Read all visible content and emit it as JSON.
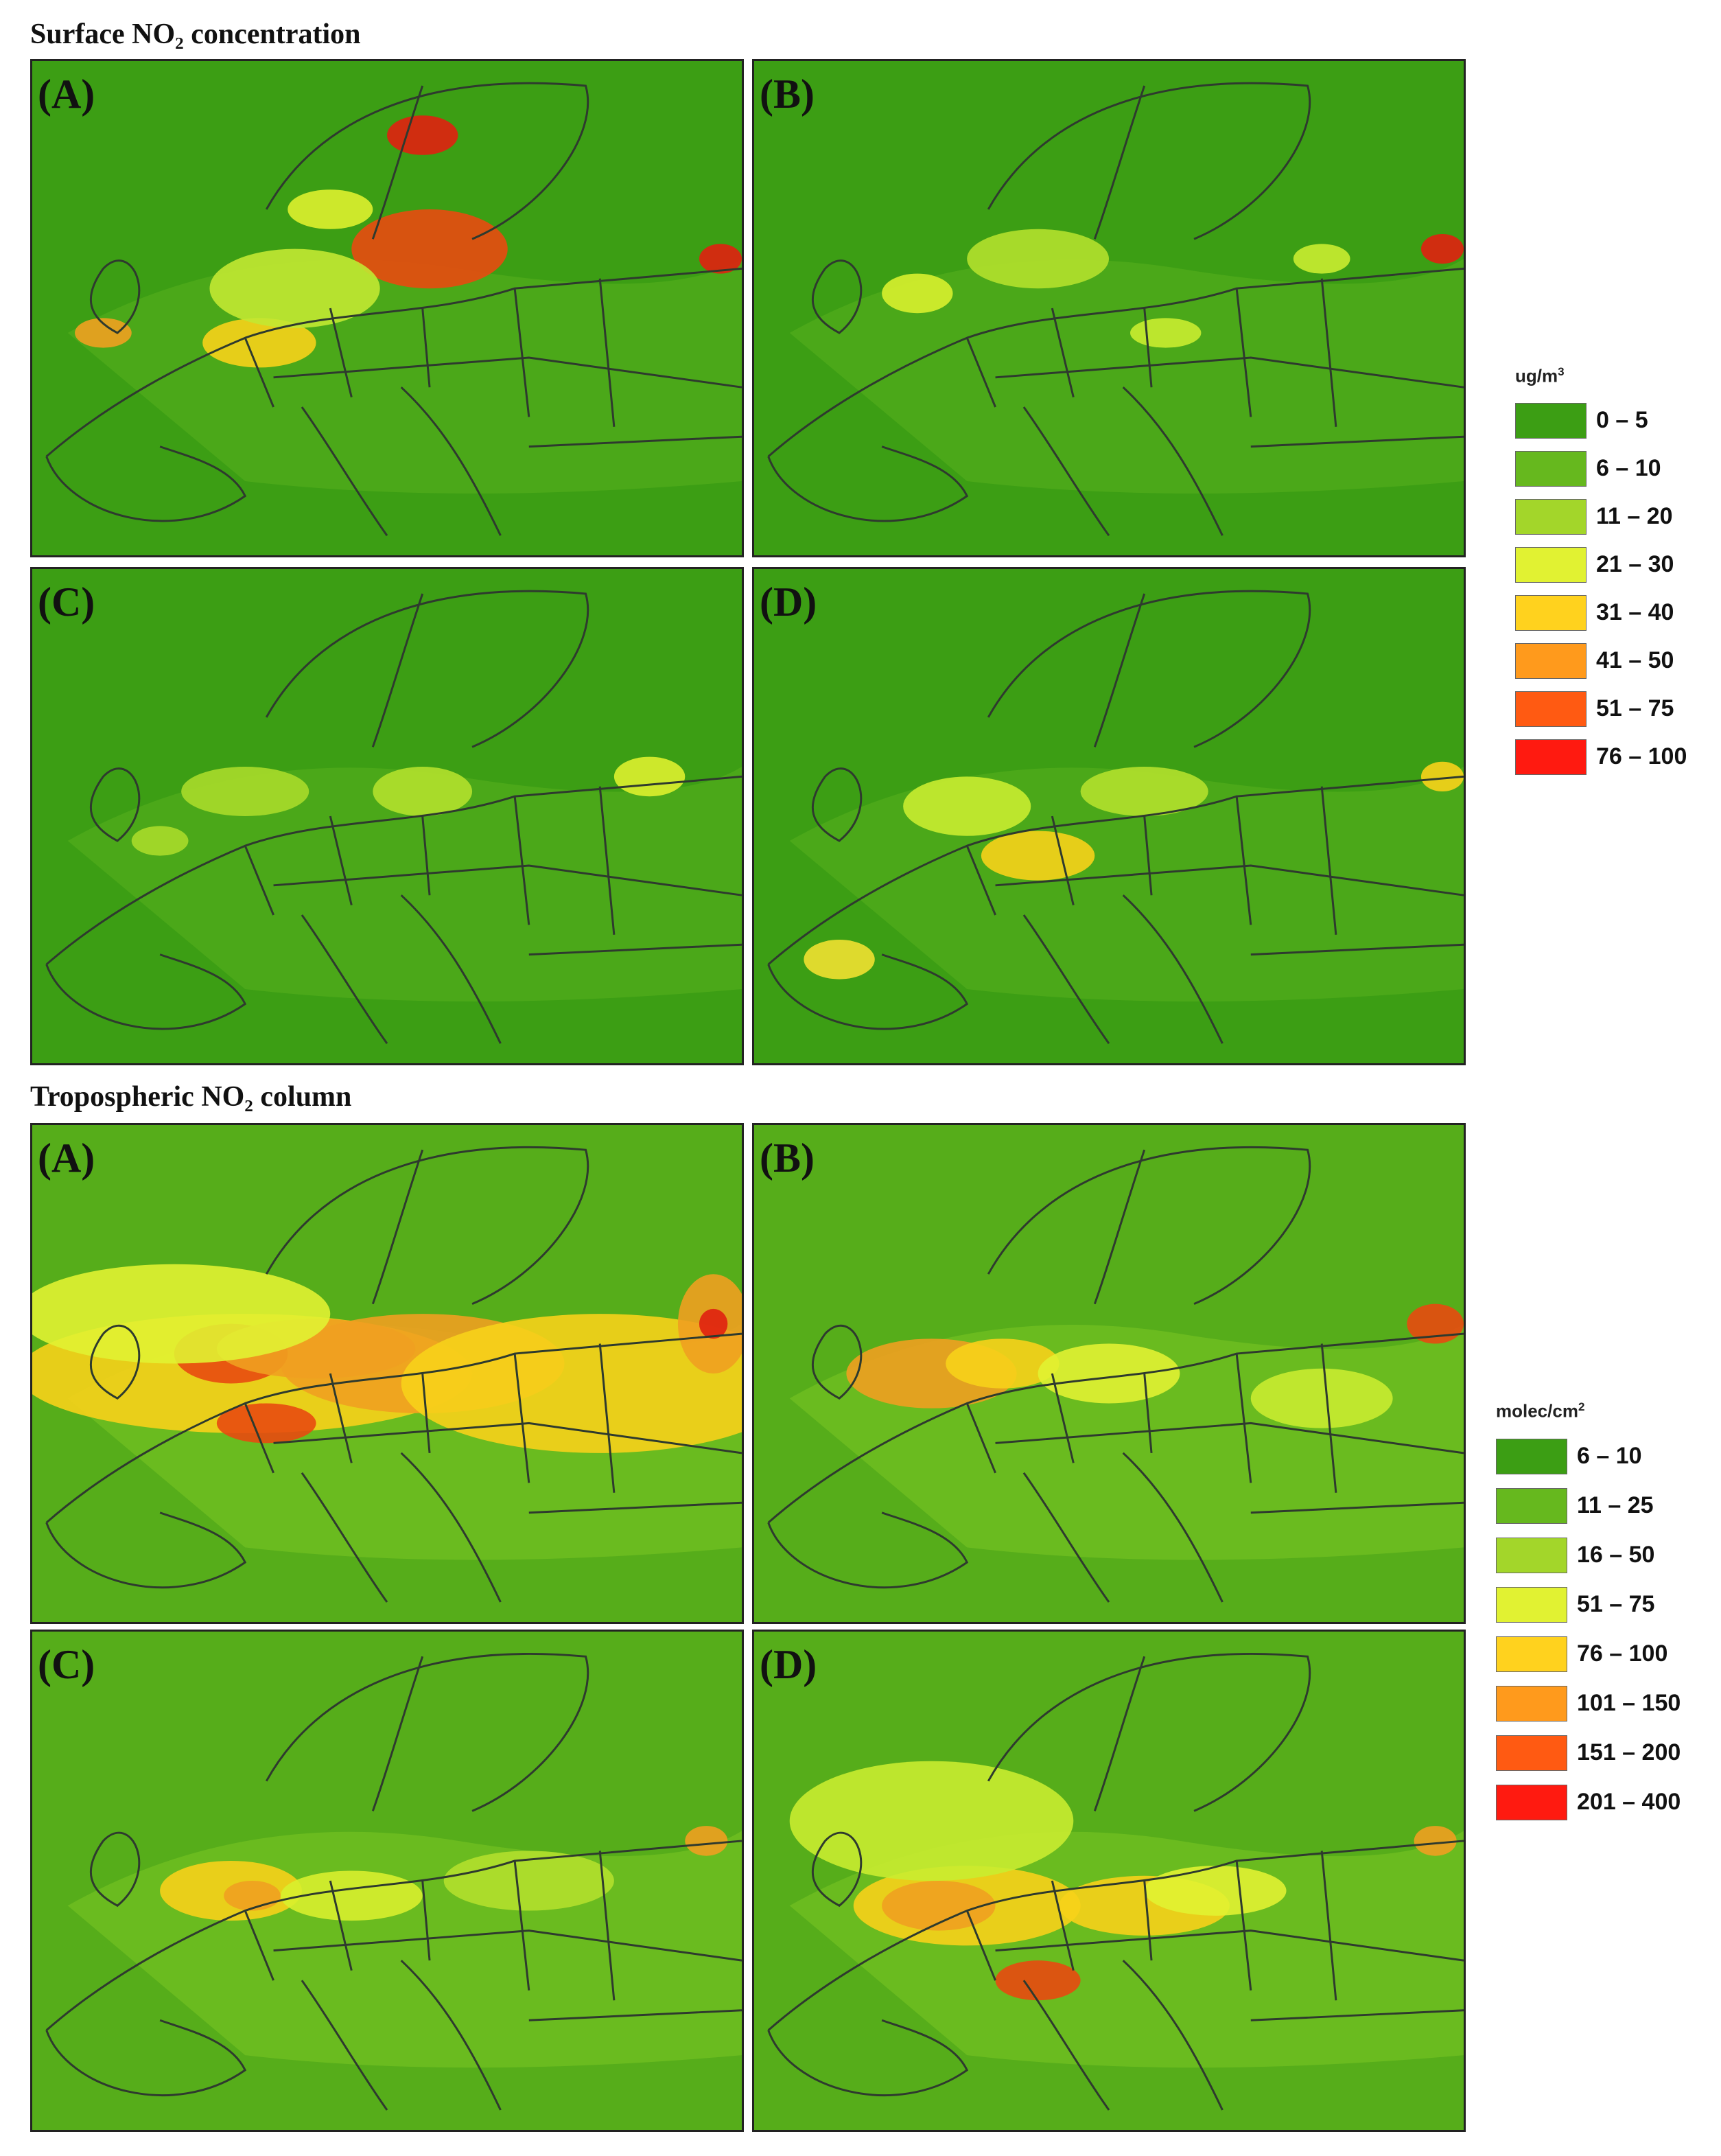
{
  "sections": [
    {
      "title": "Surface NO₂ concentration",
      "panels": [
        {
          "label": "(A)",
          "hotspots": [
            [
              0.56,
              0.38,
              0.11,
              0.08,
              "#e84a10"
            ],
            [
              0.1,
              0.55,
              0.04,
              0.03,
              "#f0a020"
            ],
            [
              0.55,
              0.15,
              0.05,
              0.04,
              "#e02010"
            ],
            [
              0.32,
              0.57,
              0.08,
              0.05,
              "#f7d21a"
            ],
            [
              0.97,
              0.4,
              0.03,
              0.03,
              "#e02010"
            ],
            [
              0.37,
              0.46,
              0.12,
              0.08,
              "#c2e832"
            ],
            [
              0.42,
              0.3,
              0.06,
              0.04,
              "#ddf02e"
            ]
          ]
        },
        {
          "label": "(B)",
          "hotspots": [
            [
              0.4,
              0.4,
              0.1,
              0.06,
              "#b3e02c"
            ],
            [
              0.23,
              0.47,
              0.05,
              0.04,
              "#d8ef2e"
            ],
            [
              0.97,
              0.38,
              0.03,
              0.03,
              "#e02010"
            ],
            [
              0.58,
              0.55,
              0.05,
              0.03,
              "#c9ec30"
            ],
            [
              0.8,
              0.4,
              0.04,
              0.03,
              "#c9ec30"
            ]
          ]
        },
        {
          "label": "(C)",
          "hotspots": [
            [
              0.3,
              0.45,
              0.09,
              0.05,
              "#a9da2a"
            ],
            [
              0.55,
              0.45,
              0.07,
              0.05,
              "#b3e02c"
            ],
            [
              0.87,
              0.42,
              0.05,
              0.04,
              "#ddf02e"
            ],
            [
              0.18,
              0.55,
              0.04,
              0.03,
              "#a9da2a"
            ]
          ]
        },
        {
          "label": "(D)",
          "hotspots": [
            [
              0.4,
              0.58,
              0.08,
              0.05,
              "#f7d21a"
            ],
            [
              0.3,
              0.48,
              0.09,
              0.06,
              "#c9ec30"
            ],
            [
              0.55,
              0.45,
              0.09,
              0.05,
              "#b3e02c"
            ],
            [
              0.12,
              0.79,
              0.05,
              0.04,
              "#f0e030"
            ],
            [
              0.97,
              0.42,
              0.03,
              0.03,
              "#f7d21a"
            ]
          ]
        }
      ],
      "legend": {
        "unit": "ug/m",
        "unit_sup": "3",
        "bins": [
          {
            "label": "0 – 5",
            "color": "#3c9e14"
          },
          {
            "label": "6 – 10",
            "color": "#66b81e"
          },
          {
            "label": "11 – 20",
            "color": "#a3d62a"
          },
          {
            "label": "21 – 30",
            "color": "#e1f232"
          },
          {
            "label": "31 – 40",
            "color": "#ffd21e"
          },
          {
            "label": "41 – 50",
            "color": "#ff9a1c"
          },
          {
            "label": "51 – 75",
            "color": "#ff5a12"
          },
          {
            "label": "76 – 100",
            "color": "#ff1a10"
          }
        ]
      }
    },
    {
      "title": "Tropospheric NO₂ column",
      "panels": [
        {
          "label": "(A)",
          "hotspots": [
            [
              0.3,
              0.5,
              0.32,
              0.12,
              "#f7d21a"
            ],
            [
              0.55,
              0.48,
              0.2,
              0.1,
              "#f0a020"
            ],
            [
              0.8,
              0.52,
              0.28,
              0.14,
              "#f7d21a"
            ],
            [
              0.96,
              0.4,
              0.05,
              0.1,
              "#f0a020"
            ],
            [
              0.33,
              0.6,
              0.07,
              0.04,
              "#e84a10"
            ],
            [
              0.28,
              0.46,
              0.08,
              0.06,
              "#e84a10"
            ],
            [
              0.96,
              0.4,
              0.02,
              0.03,
              "#e02010"
            ],
            [
              0.4,
              0.45,
              0.14,
              0.06,
              "#f0a020"
            ],
            [
              0.2,
              0.38,
              0.22,
              0.1,
              "#e1f232"
            ]
          ]
        },
        {
          "label": "(B)",
          "hotspots": [
            [
              0.25,
              0.5,
              0.12,
              0.07,
              "#f0a020"
            ],
            [
              0.35,
              0.48,
              0.08,
              0.05,
              "#f7d21a"
            ],
            [
              0.5,
              0.5,
              0.1,
              0.06,
              "#e1f232"
            ],
            [
              0.96,
              0.4,
              0.04,
              0.04,
              "#e84a10"
            ],
            [
              0.8,
              0.55,
              0.1,
              0.06,
              "#c9ec30"
            ]
          ]
        },
        {
          "label": "(C)",
          "hotspots": [
            [
              0.28,
              0.52,
              0.1,
              0.06,
              "#f7d21a"
            ],
            [
              0.31,
              0.53,
              0.04,
              0.03,
              "#f0a020"
            ],
            [
              0.45,
              0.53,
              0.1,
              0.05,
              "#d8ef2e"
            ],
            [
              0.95,
              0.42,
              0.03,
              0.03,
              "#f0a020"
            ],
            [
              0.7,
              0.5,
              0.12,
              0.06,
              "#b3e02c"
            ]
          ]
        },
        {
          "label": "(D)",
          "hotspots": [
            [
              0.3,
              0.55,
              0.16,
              0.08,
              "#f7d21a"
            ],
            [
              0.26,
              0.55,
              0.08,
              0.05,
              "#f0a020"
            ],
            [
              0.4,
              0.7,
              0.06,
              0.04,
              "#e84a10"
            ],
            [
              0.55,
              0.55,
              0.12,
              0.06,
              "#f7d21a"
            ],
            [
              0.96,
              0.42,
              0.03,
              0.03,
              "#f0a020"
            ],
            [
              0.25,
              0.38,
              0.2,
              0.12,
              "#c9ec30"
            ],
            [
              0.65,
              0.52,
              0.1,
              0.05,
              "#e1f232"
            ]
          ]
        }
      ],
      "legend": {
        "unit": "molec/cm",
        "unit_sup": "2",
        "bins": [
          {
            "label": "6 – 10",
            "color": "#3c9e14"
          },
          {
            "label": "11 – 25",
            "color": "#66b81e"
          },
          {
            "label": "16 – 50",
            "color": "#a3d62a"
          },
          {
            "label": "51 – 75",
            "color": "#e1f232"
          },
          {
            "label": "76 – 100",
            "color": "#ffd21e"
          },
          {
            "label": "101 – 150",
            "color": "#ff9a1c"
          },
          {
            "label": "151 – 200",
            "color": "#ff5a12"
          },
          {
            "label": "201 – 400",
            "color": "#ff1a10"
          }
        ]
      }
    }
  ]
}
